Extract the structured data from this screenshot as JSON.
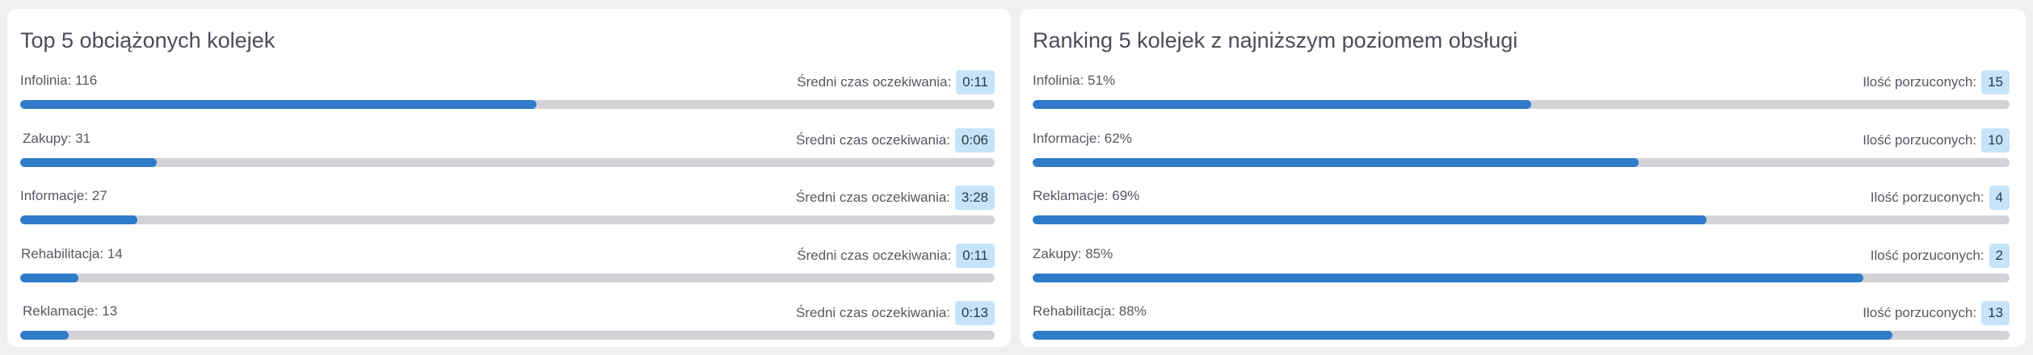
{
  "left_panel": {
    "title": "Top 5 obciążonych kolejek",
    "stat_label": "Średni czas oczekiwania:",
    "rows": [
      {
        "label": "Infolinia:  116",
        "badge": "0:11",
        "fill": 0.53
      },
      {
        "label": "Zakupy:  31",
        "badge": "0:06",
        "fill": 0.14
      },
      {
        "label": "Informacje:  27",
        "badge": "3:28",
        "fill": 0.12
      },
      {
        "label": "Rehabilitacja: 14",
        "badge": "0:11",
        "fill": 0.06
      },
      {
        "label": "Reklamacje: 13",
        "badge": "0:13",
        "fill": 0.05
      }
    ]
  },
  "right_panel": {
    "title": "Ranking 5 kolejek z najniższym poziomem obsługi",
    "stat_label": "Ilość porzuconych:",
    "rows": [
      {
        "label": "Infolinia: 51%",
        "badge": "15",
        "fill": 0.51
      },
      {
        "label": "Informacje: 62%",
        "badge": "10",
        "fill": 0.62
      },
      {
        "label": "Reklamacje: 69%",
        "badge": "4",
        "fill": 0.69
      },
      {
        "label": "Zakupy: 85%",
        "badge": "2",
        "fill": 0.85
      },
      {
        "label": "Rehabilitacja: 88%",
        "badge": "13",
        "fill": 0.88
      }
    ]
  },
  "colors": {
    "bar_fill": "#2f7bc9",
    "bar_track": "#d2d3d7",
    "badge_bg": "#c5e4fa"
  }
}
